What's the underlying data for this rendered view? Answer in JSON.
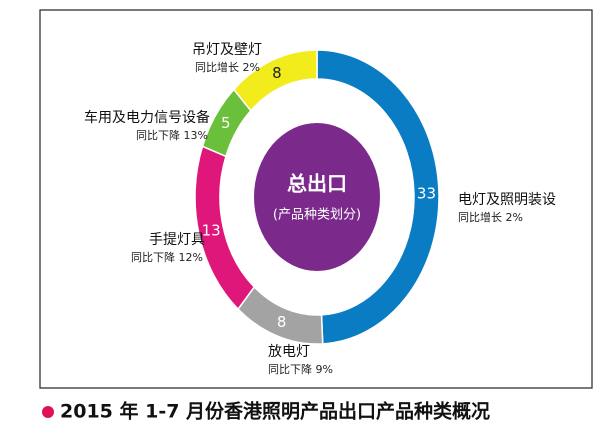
{
  "chart_data": {
    "type": "donut",
    "title": "2015 年 1-7 月份香港照明产品出口产品种类概况",
    "center_title": "总出口",
    "center_subtitle": "(产品种类划分)",
    "categories": [
      "电灯及照明装设",
      "放电灯",
      "手提灯具",
      "车用及电力信号设备",
      "吊灯及壁灯"
    ],
    "notes": [
      "同比增长 2%",
      "同比下降 9%",
      "同比下降 12%",
      "同比下降 13%",
      "同比增长 2%"
    ],
    "values": [
      33,
      8,
      13,
      5,
      8
    ],
    "colors": [
      "#0a7cc4",
      "#a3a3a3",
      "#e0177b",
      "#6abf3b",
      "#f2ec1c"
    ]
  }
}
